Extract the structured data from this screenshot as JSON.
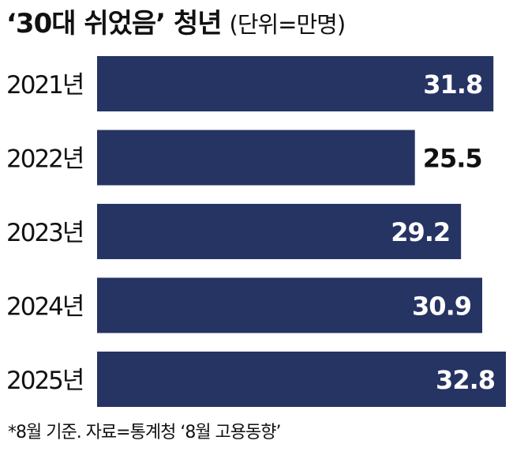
{
  "header": {
    "title": "‘30대 쉬었음’ 청년",
    "unit": "(단위=만명)"
  },
  "footer": {
    "source": "*8월 기준. 자료=통계청 ‘8월 고용동향’"
  },
  "colors": {
    "bar": "#263463",
    "label_inside": "#ffffff",
    "label_outside": "#111111",
    "text": "#111111"
  },
  "chart_data": {
    "type": "bar",
    "orientation": "horizontal",
    "title": "‘30대 쉬었음’ 청년",
    "unit": "(단위=만명)",
    "categories": [
      "2021년",
      "2022년",
      "2023년",
      "2024년",
      "2025년"
    ],
    "values": [
      31.8,
      25.5,
      29.2,
      30.9,
      32.8
    ],
    "value_labels": [
      "31.8",
      "25.5",
      "29.2",
      "30.9",
      "32.8"
    ],
    "xlim": [
      0,
      32.8
    ],
    "grid": false,
    "legend": "none"
  }
}
